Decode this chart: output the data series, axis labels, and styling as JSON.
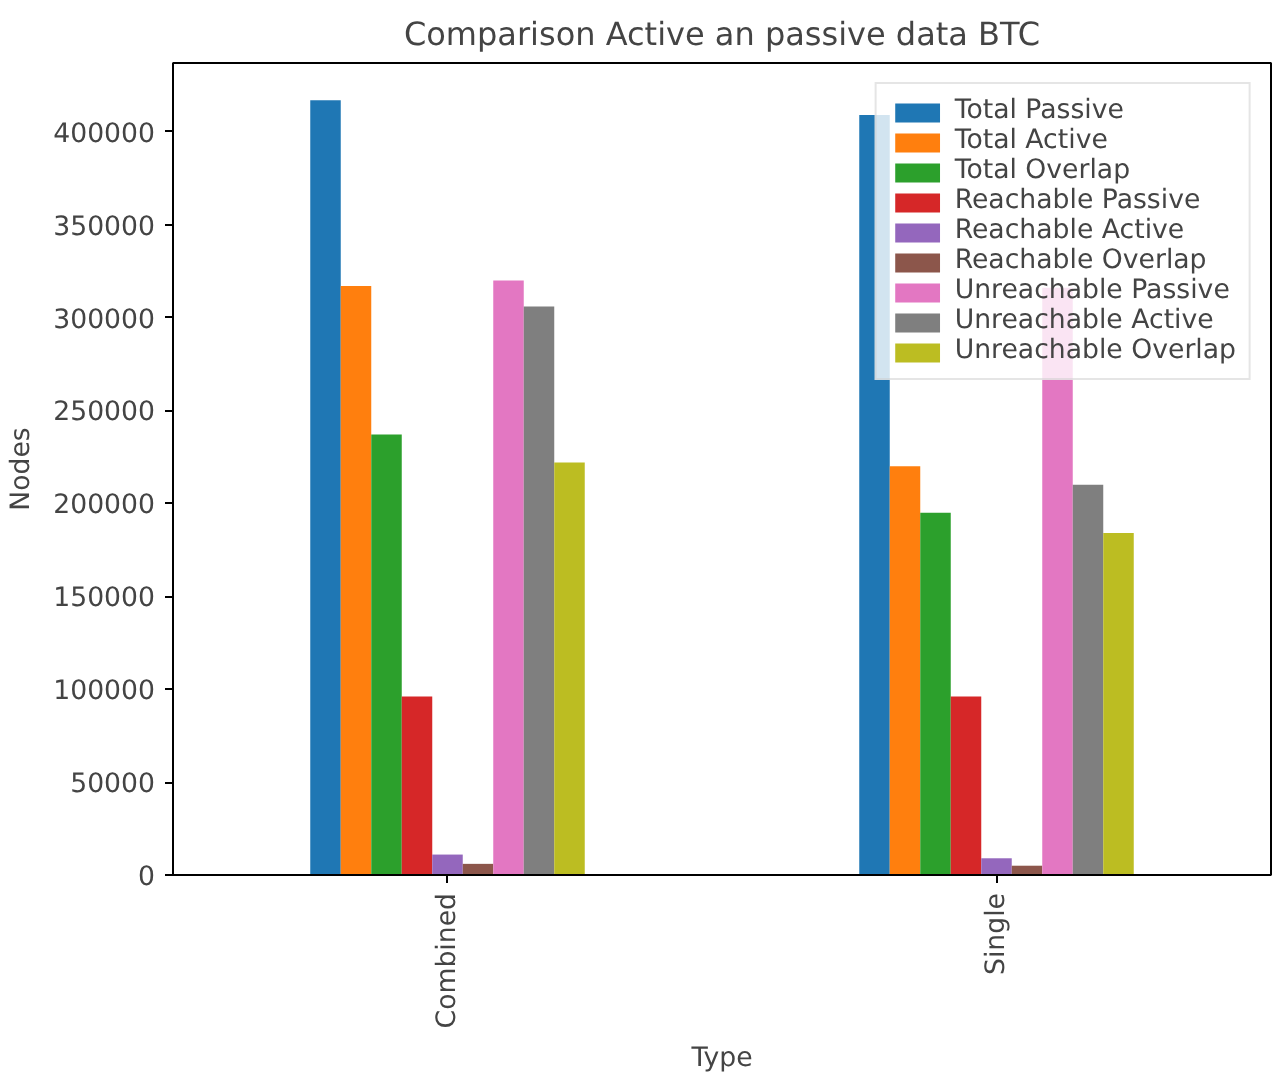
{
  "chart_data": {
    "type": "bar",
    "title": "Comparison Active an passive data BTC",
    "xlabel": "Type",
    "ylabel": "Nodes",
    "categories": [
      "Combined",
      "Single"
    ],
    "series": [
      {
        "name": "Total Passive",
        "color": "#1f77b4",
        "values": [
          417000,
          409000
        ]
      },
      {
        "name": "Total Active",
        "color": "#ff7f0e",
        "values": [
          317000,
          220000
        ]
      },
      {
        "name": "Total Overlap",
        "color": "#2ca02c",
        "values": [
          237000,
          195000
        ]
      },
      {
        "name": "Reachable Passive",
        "color": "#d62728",
        "values": [
          96000,
          96000
        ]
      },
      {
        "name": "Reachable Active",
        "color": "#9467bd",
        "values": [
          11000,
          9000
        ]
      },
      {
        "name": "Reachable Overlap",
        "color": "#8c564b",
        "values": [
          6000,
          5000
        ]
      },
      {
        "name": "Unreachable Passive",
        "color": "#e377c2",
        "values": [
          320000,
          316000
        ]
      },
      {
        "name": "Unreachable Active",
        "color": "#7f7f7f",
        "values": [
          306000,
          210000
        ]
      },
      {
        "name": "Unreachable Overlap",
        "color": "#bcbd22",
        "values": [
          222000,
          184000
        ]
      }
    ],
    "ylim": [
      0,
      437000
    ],
    "yticks": [
      0,
      50000,
      100000,
      150000,
      200000,
      250000,
      300000,
      350000,
      400000
    ],
    "grid": false,
    "legend": "top right"
  }
}
